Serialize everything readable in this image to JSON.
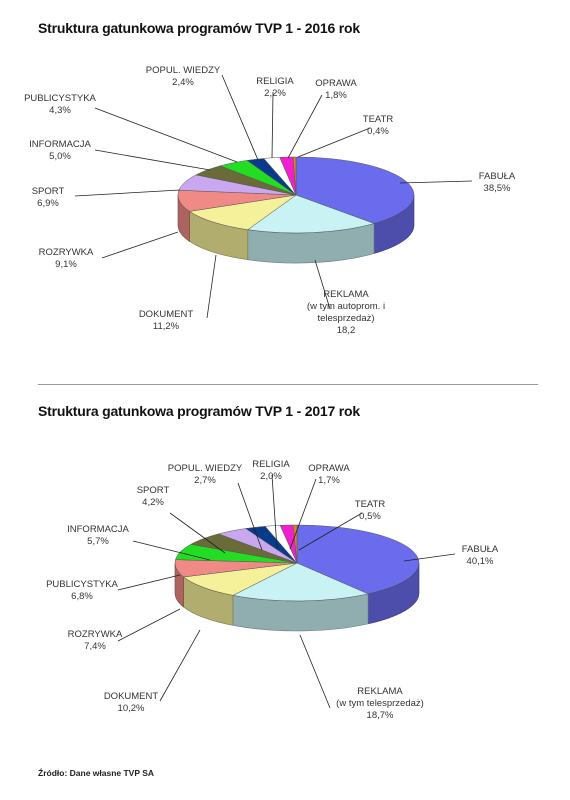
{
  "source_note": "Źródło: Dane własne TVP SA",
  "chart_data": [
    {
      "type": "pie",
      "title": "Struktura gatunkowa programów TVP 1 - 2016 rok",
      "slices": [
        {
          "name": "FABUŁA",
          "value": 38.5,
          "value_label": "38,5%",
          "color": "#6b6bee"
        },
        {
          "name": "REKLAMA",
          "sublabel": "(w tym autoprom. i telesprzedaż)",
          "value": 18.2,
          "value_label": "18,2",
          "color": "#c8f2f4"
        },
        {
          "name": "DOKUMENT",
          "value": 11.2,
          "value_label": "11,2%",
          "color": "#f5f09a"
        },
        {
          "name": "ROZRYWKA",
          "value": 9.1,
          "value_label": "9,1%",
          "color": "#f08a86"
        },
        {
          "name": "SPORT",
          "value": 6.9,
          "value_label": "6,9%",
          "color": "#c9a8f0"
        },
        {
          "name": "INFORMACJA",
          "value": 5.0,
          "value_label": "5,0%",
          "color": "#6b6b3a"
        },
        {
          "name": "PUBLICYSTYKA",
          "value": 4.3,
          "value_label": "4,3%",
          "color": "#22dd22"
        },
        {
          "name": "POPUL. WIEDZY",
          "value": 2.4,
          "value_label": "2,4%",
          "color": "#0a3a8a"
        },
        {
          "name": "RELIGIA",
          "value": 2.2,
          "value_label": "2,2%",
          "color": "#ffffff"
        },
        {
          "name": "OPRAWA",
          "value": 1.8,
          "value_label": "1,8%",
          "color": "#f020d0"
        },
        {
          "name": "TEATR",
          "value": 0.4,
          "value_label": "0,4%",
          "color": "#e08020"
        }
      ]
    },
    {
      "type": "pie",
      "title": "Struktura gatunkowa programów TVP 1 - 2017 rok",
      "slices": [
        {
          "name": "FABUŁA",
          "value": 40.1,
          "value_label": "40,1%",
          "color": "#6b6bee"
        },
        {
          "name": "REKLAMA",
          "sublabel": "(w tym telesprzedaż)",
          "value": 18.7,
          "value_label": "18,7%",
          "color": "#c8f2f4"
        },
        {
          "name": "DOKUMENT",
          "value": 10.2,
          "value_label": "10,2%",
          "color": "#f5f09a"
        },
        {
          "name": "ROZRYWKA",
          "value": 7.4,
          "value_label": "7,4%",
          "color": "#f08a86"
        },
        {
          "name": "PUBLICYSTYKA",
          "value": 6.8,
          "value_label": "6,8%",
          "color": "#22dd22"
        },
        {
          "name": "INFORMACJA",
          "value": 5.7,
          "value_label": "5,7%",
          "color": "#6b6b3a"
        },
        {
          "name": "SPORT",
          "value": 4.2,
          "value_label": "4,2%",
          "color": "#c9a8f0"
        },
        {
          "name": "POPUL. WIEDZY",
          "value": 2.7,
          "value_label": "2,7%",
          "color": "#0a3a8a"
        },
        {
          "name": "RELIGIA",
          "value": 2.0,
          "value_label": "2,0%",
          "color": "#ffffff"
        },
        {
          "name": "OPRAWA",
          "value": 1.7,
          "value_label": "1,7%",
          "color": "#f020d0"
        },
        {
          "name": "TEATR",
          "value": 0.5,
          "value_label": "0,5%",
          "color": "#e08020"
        }
      ]
    }
  ]
}
